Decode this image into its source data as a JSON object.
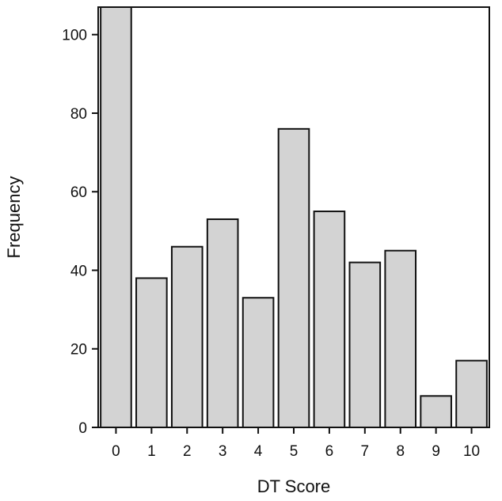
{
  "chart_data": {
    "type": "bar",
    "title": "",
    "xlabel": "DT Score",
    "ylabel": "Frequency",
    "categories": [
      "0",
      "1",
      "2",
      "3",
      "4",
      "5",
      "6",
      "7",
      "8",
      "9",
      "10"
    ],
    "values": [
      107,
      38,
      46,
      53,
      33,
      76,
      55,
      42,
      45,
      8,
      17
    ],
    "ylim": [
      0,
      107
    ],
    "yticks": [
      0,
      20,
      40,
      60,
      80,
      100
    ],
    "ytick_labels": [
      "0",
      "20",
      "40",
      "60",
      "80",
      "100"
    ],
    "grid": false,
    "legend": "none",
    "colors": {
      "bar_fill": "#d3d3d3",
      "bar_stroke": "#111111",
      "axis": "#111111"
    }
  }
}
